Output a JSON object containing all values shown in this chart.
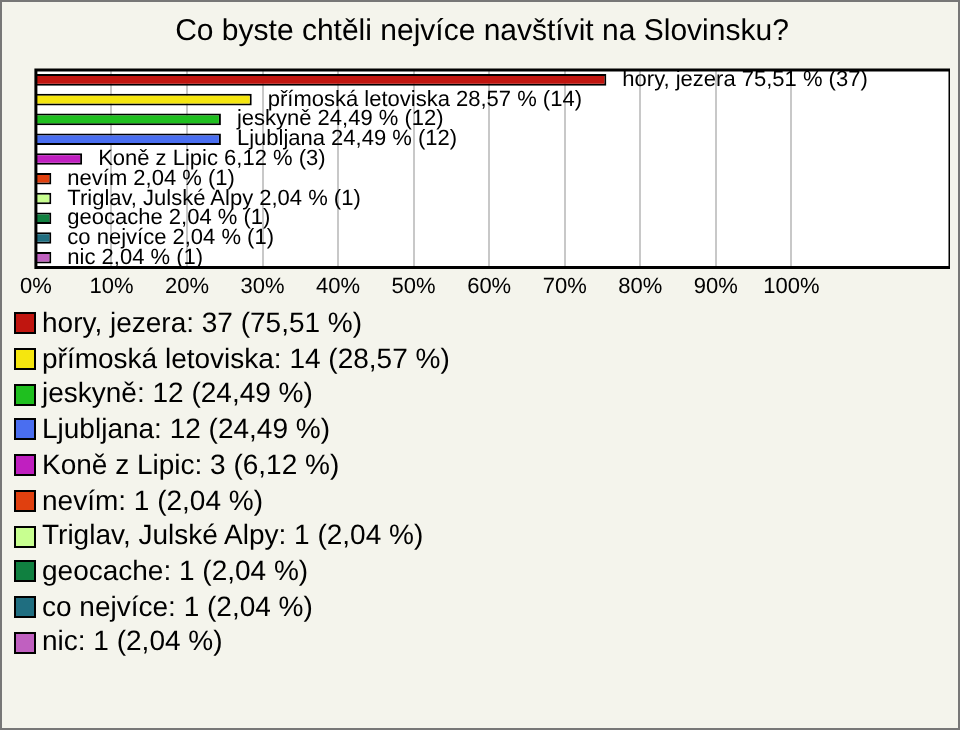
{
  "chart_data": {
    "type": "bar",
    "orientation": "horizontal",
    "title": "Co byste chtěli nejvíce navštívit na Slovinsku?",
    "categories": [
      null,
      null,
      null,
      null,
      null,
      null,
      null,
      null,
      null,
      null
    ],
    "values": [
      75.51,
      28.57,
      24.49,
      24.49,
      6.12,
      2.04,
      2.04,
      2.04,
      2.04,
      2.04
    ],
    "colors": [
      "#c0150f",
      "#f5e60f",
      "#1fbf1f",
      "#4a6ef0",
      "#c01fc0",
      "#e0400f",
      "#c8ff90",
      "#108040",
      "#1f6e80",
      "#c060c0"
    ],
    "value_labels": [
      "hory, jezera 75,51 % (37)",
      "přímoská letoviska 28,57 % (14)",
      "jeskyně 24,49 % (12)",
      "Ljubljana 24,49 % (12)",
      "Koně z Lipic 6,12 % (3)",
      "nevím 2,04 % (1)",
      "Triglav, Julské Alpy 2,04 % (1)",
      "geocache 2,04 % (1)",
      "co nejvíce 2,04 % (1)",
      "nic 2,04 % (1)"
    ],
    "xlim": [
      0,
      121
    ],
    "xticks": [
      {
        "value": 0,
        "label": "0%"
      },
      {
        "value": 10,
        "label": "10%"
      },
      {
        "value": 20,
        "label": "20%"
      },
      {
        "value": 30,
        "label": "30%"
      },
      {
        "value": 40,
        "label": "40%"
      },
      {
        "value": 50,
        "label": "50%"
      },
      {
        "value": 60,
        "label": "60%"
      },
      {
        "value": 70,
        "label": "70%"
      },
      {
        "value": 80,
        "label": "80%"
      },
      {
        "value": 90,
        "label": "90%"
      },
      {
        "value": 100,
        "label": "100%"
      }
    ],
    "tick_labels": "x",
    "grid": "x",
    "annotations": [
      "hory, jezera: 37 (75,51 %)",
      "přímoská letoviska: 14 (28,57 %)",
      "jeskyně: 12 (24,49 %)",
      "Ljubljana: 12 (24,49 %)",
      "Koně z Lipic: 3 (6,12 %)",
      "nevím: 1 (2,04 %)",
      "Triglav, Julské Alpy: 1 (2,04 %)",
      "geocache: 1 (2,04 %)",
      "co nejvíce: 1 (2,04 %)",
      "nic: 1 (2,04 %)"
    ]
  }
}
